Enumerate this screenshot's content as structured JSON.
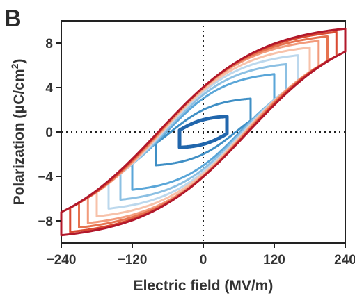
{
  "chart_data": {
    "type": "line",
    "panel_label": "B",
    "xlabel": "Electric field (MV/m)",
    "ylabel_main": "Polarization (μC/cm",
    "ylabel_sup": "2",
    "ylabel_end": ")",
    "xlim": [
      -240,
      240
    ],
    "ylim": [
      -10,
      10
    ],
    "xticks": [
      -240,
      -120,
      0,
      120,
      240
    ],
    "xtick_labels": [
      "−240",
      "−120",
      "0",
      "120",
      "240"
    ],
    "yticks": [
      8,
      4,
      0,
      -4,
      -8
    ],
    "ytick_labels": [
      "8",
      "4",
      "0",
      "−4",
      "−8"
    ],
    "grid": false,
    "reference_lines": {
      "x": 0,
      "y": 0,
      "style": "dotted"
    },
    "series": [
      {
        "color": "#2166ac",
        "emax": 40,
        "pmax": 1.4,
        "offset": -45,
        "pr": 0.6
      },
      {
        "color": "#3f8fc5",
        "emax": 80,
        "pmax": 3.0,
        "offset": -55,
        "pr": 1.3
      },
      {
        "color": "#5aa6d8",
        "emax": 120,
        "pmax": 5.2,
        "offset": -62,
        "pr": 2.2
      },
      {
        "color": "#8cc0e3",
        "emax": 140,
        "pmax": 6.1,
        "offset": -65,
        "pr": 2.6
      },
      {
        "color": "#bcd8ed",
        "emax": 160,
        "pmax": 6.9,
        "offset": -68,
        "pr": 3.0
      },
      {
        "color": "#f7c2aa",
        "emax": 180,
        "pmax": 7.6,
        "offset": -70,
        "pr": 3.4
      },
      {
        "color": "#f29b7c",
        "emax": 195,
        "pmax": 8.2,
        "offset": -72,
        "pr": 3.8
      },
      {
        "color": "#e6734f",
        "emax": 210,
        "pmax": 8.6,
        "offset": -74,
        "pr": 4.2
      },
      {
        "color": "#d94a32",
        "emax": 225,
        "pmax": 9.0,
        "offset": -75,
        "pr": 4.6
      },
      {
        "color": "#b2182b",
        "emax": 240,
        "pmax": 9.3,
        "offset": -76,
        "pr": 5.0
      }
    ]
  }
}
